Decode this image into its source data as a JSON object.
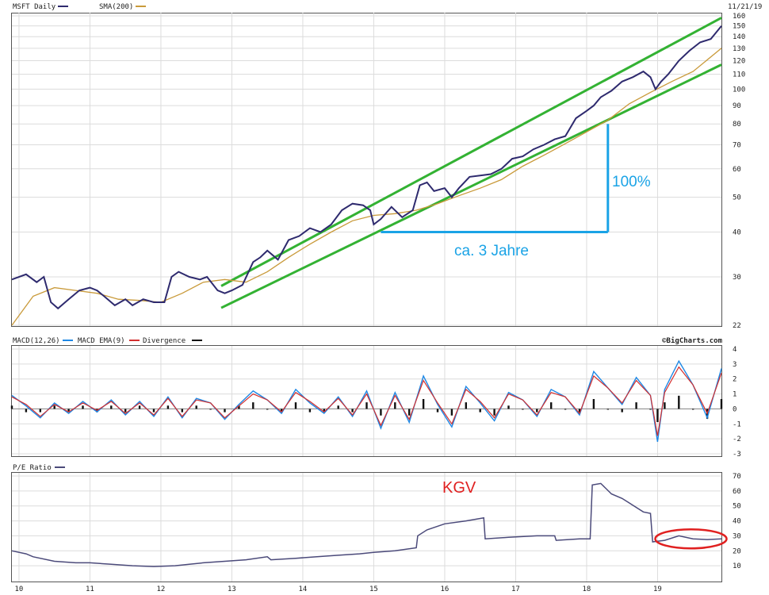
{
  "colors": {
    "price": "#2e2a6e",
    "sma": "#c99a3a",
    "channel": "#33b233",
    "measure": "#1aa3e6",
    "macd": "#1e88e5",
    "macd_ema": "#d32f2f",
    "divergence": "#111111",
    "pe": "#4b4a7a",
    "ellipse": "#e02020",
    "grid": "#dcdcdc"
  },
  "chart_data": [
    {
      "type": "line",
      "panel": "price",
      "legend": [
        "MSFT Daily",
        "SMA(200)"
      ],
      "date_label": "11/21/19",
      "scale": "log",
      "ylim": [
        22,
        160
      ],
      "y_ticks": [
        22,
        30,
        40,
        50,
        60,
        70,
        80,
        90,
        100,
        110,
        120,
        130,
        140,
        150,
        160
      ],
      "x_range": [
        2009.9,
        2019.9
      ],
      "x_tick_labels": [
        "10",
        "11",
        "12",
        "13",
        "14",
        "15",
        "16",
        "17",
        "18",
        "19"
      ],
      "series": [
        {
          "name": "MSFT Daily",
          "x": [
            2009.9,
            2010.1,
            2010.25,
            2010.35,
            2010.45,
            2010.55,
            2010.7,
            2010.85,
            2011.0,
            2011.1,
            2011.2,
            2011.35,
            2011.5,
            2011.6,
            2011.75,
            2011.9,
            2012.05,
            2012.15,
            2012.25,
            2012.4,
            2012.55,
            2012.65,
            2012.8,
            2012.9,
            2013.0,
            2013.15,
            2013.3,
            2013.4,
            2013.5,
            2013.65,
            2013.8,
            2013.95,
            2014.1,
            2014.25,
            2014.4,
            2014.55,
            2014.7,
            2014.85,
            2014.95,
            2015.0,
            2015.1,
            2015.25,
            2015.4,
            2015.55,
            2015.65,
            2015.75,
            2015.85,
            2016.0,
            2016.1,
            2016.2,
            2016.35,
            2016.5,
            2016.65,
            2016.8,
            2016.95,
            2017.1,
            2017.25,
            2017.4,
            2017.55,
            2017.7,
            2017.85,
            2018.0,
            2018.1,
            2018.2,
            2018.35,
            2018.5,
            2018.65,
            2018.8,
            2018.9,
            2018.97,
            2019.05,
            2019.15,
            2019.3,
            2019.45,
            2019.6,
            2019.75,
            2019.9
          ],
          "y": [
            29.5,
            30.5,
            29,
            30,
            25.5,
            24.5,
            26,
            27.5,
            28,
            27.5,
            26.5,
            25,
            26,
            25,
            26,
            25.5,
            25.5,
            30,
            31,
            30,
            29.5,
            30,
            27.5,
            27,
            27.5,
            28.5,
            33,
            34,
            35.5,
            33.5,
            38,
            39,
            41,
            40,
            42,
            46,
            48,
            47.5,
            46,
            42,
            43.5,
            47,
            44,
            46,
            54,
            55,
            52,
            53,
            50,
            53,
            57,
            57.5,
            58,
            60,
            64,
            65,
            68,
            70,
            72.5,
            74,
            83,
            87,
            90,
            95,
            99,
            105,
            108,
            112,
            108,
            100,
            105,
            110,
            120,
            128,
            135,
            138,
            150
          ]
        },
        {
          "name": "SMA(200)",
          "x": [
            2009.9,
            2010.2,
            2010.5,
            2010.8,
            2011.1,
            2011.4,
            2011.7,
            2012.0,
            2012.3,
            2012.6,
            2012.9,
            2013.2,
            2013.5,
            2013.8,
            2014.1,
            2014.4,
            2014.7,
            2015.0,
            2015.3,
            2015.6,
            2015.9,
            2016.2,
            2016.5,
            2016.8,
            2017.1,
            2017.4,
            2017.7,
            2018.0,
            2018.3,
            2018.6,
            2018.9,
            2019.2,
            2019.5,
            2019.9
          ],
          "y": [
            22,
            26.5,
            28,
            27.5,
            27,
            26,
            25.8,
            25.5,
            27,
            29,
            29.5,
            29,
            31,
            34,
            37,
            40,
            43,
            44.5,
            45,
            46,
            48,
            50.5,
            53,
            56,
            61,
            65.5,
            70.5,
            76,
            82,
            91,
            98,
            105,
            112,
            130
          ]
        }
      ],
      "channel_lines": [
        {
          "x": [
            2012.85,
            2019.9
          ],
          "y": [
            28.3,
            158
          ]
        },
        {
          "x": [
            2012.85,
            2019.9
          ],
          "y": [
            24.6,
            117
          ]
        }
      ],
      "annotations": [
        "100%",
        "ca. 3 Jahre"
      ]
    },
    {
      "type": "line",
      "panel": "macd",
      "legend": [
        "MACD(12,26)",
        "MACD EMA(9)",
        "Divergence"
      ],
      "source": "©BigCharts.com",
      "ylim": [
        -3,
        4
      ],
      "y_ticks": [
        -3,
        -2,
        -1,
        0,
        1,
        2,
        3,
        4
      ],
      "series": [
        {
          "name": "MACD(12,26)",
          "x": [
            2009.9,
            2010.1,
            2010.3,
            2010.5,
            2010.7,
            2010.9,
            2011.1,
            2011.3,
            2011.5,
            2011.7,
            2011.9,
            2012.1,
            2012.3,
            2012.5,
            2012.7,
            2012.9,
            2013.1,
            2013.3,
            2013.5,
            2013.7,
            2013.9,
            2014.1,
            2014.3,
            2014.5,
            2014.7,
            2014.9,
            2015.1,
            2015.3,
            2015.5,
            2015.7,
            2015.9,
            2016.1,
            2016.3,
            2016.5,
            2016.7,
            2016.9,
            2017.1,
            2017.3,
            2017.5,
            2017.7,
            2017.9,
            2018.1,
            2018.3,
            2018.5,
            2018.7,
            2018.9,
            2019.0,
            2019.1,
            2019.3,
            2019.5,
            2019.7,
            2019.9
          ],
          "y": [
            0.9,
            0.2,
            -0.6,
            0.4,
            -0.3,
            0.5,
            -0.2,
            0.6,
            -0.4,
            0.5,
            -0.5,
            0.8,
            -0.6,
            0.7,
            0.4,
            -0.7,
            0.3,
            1.2,
            0.6,
            -0.3,
            1.3,
            0.4,
            -0.3,
            0.8,
            -0.5,
            1.2,
            -1.3,
            1.1,
            -0.9,
            2.2,
            0.3,
            -1.2,
            1.5,
            0.4,
            -0.8,
            1.1,
            0.6,
            -0.5,
            1.3,
            0.8,
            -0.4,
            2.5,
            1.4,
            0.3,
            2.1,
            0.9,
            -2.2,
            1.3,
            3.2,
            1.6,
            -0.6,
            2.7
          ]
        },
        {
          "name": "MACD EMA(9)",
          "x": [
            2009.9,
            2010.1,
            2010.3,
            2010.5,
            2010.7,
            2010.9,
            2011.1,
            2011.3,
            2011.5,
            2011.7,
            2011.9,
            2012.1,
            2012.3,
            2012.5,
            2012.7,
            2012.9,
            2013.1,
            2013.3,
            2013.5,
            2013.7,
            2013.9,
            2014.1,
            2014.3,
            2014.5,
            2014.7,
            2014.9,
            2015.1,
            2015.3,
            2015.5,
            2015.7,
            2015.9,
            2016.1,
            2016.3,
            2016.5,
            2016.7,
            2016.9,
            2017.1,
            2017.3,
            2017.5,
            2017.7,
            2017.9,
            2018.1,
            2018.3,
            2018.5,
            2018.7,
            2018.9,
            2019.0,
            2019.1,
            2019.3,
            2019.5,
            2019.7,
            2019.9
          ],
          "y": [
            0.8,
            0.3,
            -0.5,
            0.3,
            -0.2,
            0.4,
            -0.1,
            0.5,
            -0.3,
            0.4,
            -0.4,
            0.7,
            -0.5,
            0.6,
            0.4,
            -0.6,
            0.2,
            1.0,
            0.6,
            -0.2,
            1.1,
            0.5,
            -0.2,
            0.7,
            -0.4,
            1.0,
            -1.1,
            0.9,
            -0.7,
            1.9,
            0.4,
            -1.0,
            1.3,
            0.5,
            -0.6,
            1.0,
            0.6,
            -0.4,
            1.1,
            0.8,
            -0.3,
            2.2,
            1.4,
            0.4,
            1.9,
            0.9,
            -1.8,
            1.1,
            2.8,
            1.6,
            -0.3,
            2.4
          ]
        }
      ]
    },
    {
      "type": "line",
      "panel": "pe",
      "legend": [
        "P/E Ratio"
      ],
      "ylim": [
        0,
        70
      ],
      "y_ticks": [
        10,
        20,
        30,
        40,
        50,
        60,
        70
      ],
      "series": [
        {
          "name": "P/E Ratio",
          "x": [
            2009.9,
            2010.1,
            2010.2,
            2010.5,
            2010.8,
            2011.0,
            2011.3,
            2011.6,
            2011.9,
            2012.2,
            2012.4,
            2012.6,
            2012.9,
            2013.2,
            2013.5,
            2013.55,
            2013.9,
            2014.2,
            2014.5,
            2014.8,
            2015.0,
            2015.3,
            2015.6,
            2015.62,
            2015.75,
            2016.0,
            2016.3,
            2016.55,
            2016.57,
            2016.9,
            2017.3,
            2017.55,
            2017.57,
            2017.9,
            2018.05,
            2018.08,
            2018.2,
            2018.35,
            2018.5,
            2018.6,
            2018.8,
            2018.9,
            2018.93,
            2019.1,
            2019.3,
            2019.5,
            2019.7,
            2019.9
          ],
          "y": [
            20,
            18,
            16,
            13,
            12,
            12,
            11,
            10,
            9.5,
            10,
            11,
            12,
            13,
            14,
            16,
            14,
            15,
            16,
            17,
            18,
            19,
            20,
            22,
            30,
            34,
            38,
            40,
            42,
            28,
            29,
            30,
            30,
            27,
            28,
            28,
            64,
            65,
            58,
            55,
            52,
            46,
            45,
            26,
            27,
            30,
            28,
            27.5,
            28
          ]
        }
      ],
      "annotations": [
        "KGV"
      ]
    }
  ]
}
